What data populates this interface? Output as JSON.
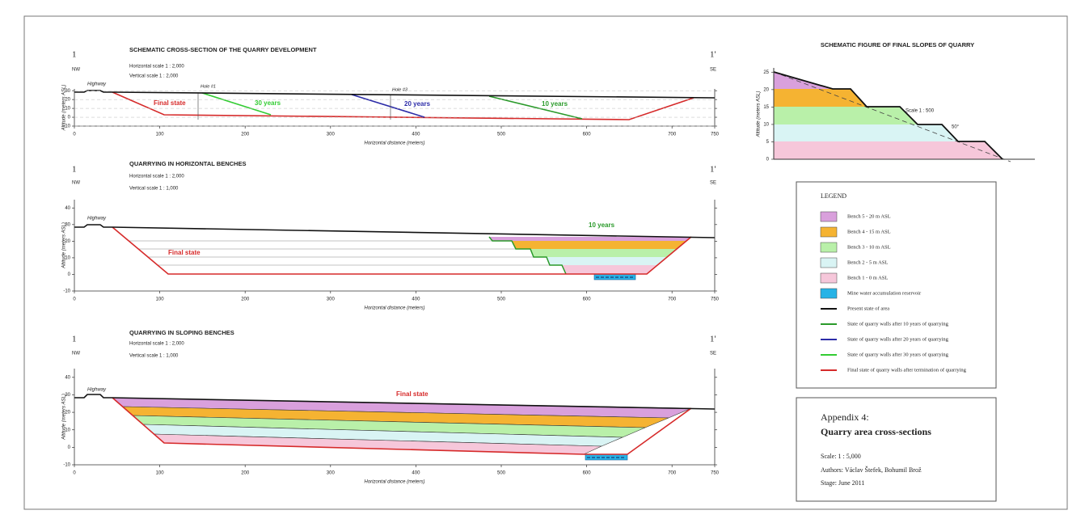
{
  "cross_sections": [
    {
      "title": "SCHEMATIC CROSS-SECTION OF THE QUARRY DEVELOPMENT",
      "id_left": "1",
      "dir_left": "NW",
      "id_right": "1'",
      "dir_right": "SE",
      "horizontal_scale": "Horizontal scale 1 : 2,000",
      "vertical_scale": "Vertical scale 1 : 2,000",
      "y_axis_label": "Altitude (meters ASL)",
      "x_axis_label": "Horizontal distance (meters)",
      "xlim": [
        0,
        750
      ],
      "ylim": [
        -10,
        32
      ],
      "xticks": [
        0,
        100,
        200,
        300,
        400,
        500,
        600,
        700,
        750
      ],
      "yticks": [
        -10,
        0,
        10,
        20,
        30
      ],
      "annotations": [
        "Highway",
        "Final state",
        "30 years",
        "Hole #1",
        "Hole #3",
        "20 years",
        "10 years"
      ]
    },
    {
      "title": "QUARRYING IN HORIZONTAL BENCHES",
      "id_left": "1",
      "dir_left": "NW",
      "id_right": "1'",
      "dir_right": "SE",
      "horizontal_scale": "Horizontal scale 1 : 2,000",
      "vertical_scale": "Vertical scale 1 : 1,000",
      "y_axis_label": "Altitude (meters ASL)",
      "x_axis_label": "Horizontal distance (meters)",
      "xlim": [
        0,
        750
      ],
      "ylim": [
        -10,
        45
      ],
      "xticks": [
        0,
        100,
        200,
        300,
        400,
        500,
        600,
        700,
        750
      ],
      "yticks": [
        -10,
        0,
        10,
        20,
        30,
        40
      ],
      "annotations": [
        "Highway",
        "Final state",
        "10 years"
      ]
    },
    {
      "title": "QUARRYING IN SLOPING BENCHES",
      "id_left": "1",
      "dir_left": "NW",
      "id_right": "1'",
      "dir_right": "SE",
      "horizontal_scale": "Horizontal scale 1 : 2,000",
      "vertical_scale": "Vertical scale 1 : 1,000",
      "y_axis_label": "Altitude (meters ASL)",
      "x_axis_label": "Horizontal distance (meters)",
      "xlim": [
        0,
        750
      ],
      "ylim": [
        -10,
        45
      ],
      "xticks": [
        0,
        100,
        200,
        300,
        400,
        500,
        600,
        700,
        750
      ],
      "yticks": [
        -10,
        0,
        10,
        20,
        30,
        40
      ],
      "annotations": [
        "Highway",
        "Final state"
      ]
    }
  ],
  "slopes_figure": {
    "title": "SCHEMATIC FIGURE OF FINAL SLOPES OF QUARRY",
    "scale": "Scale 1 : 500",
    "angle": "50°",
    "y_axis_label": "Altitude (meters ASL)",
    "ylim": [
      0,
      26
    ],
    "yticks": [
      0,
      5,
      10,
      15,
      20,
      25
    ]
  },
  "legend": {
    "title": "LEGEND",
    "items": [
      {
        "label": "Bench 5 - 20 m ASL",
        "color": "#d9a0dc",
        "kind": "fill"
      },
      {
        "label": "Bench 4 - 15 m ASL",
        "color": "#f5b332",
        "kind": "fill"
      },
      {
        "label": "Bench 3 - 10 m ASL",
        "color": "#b9f0a9",
        "kind": "fill"
      },
      {
        "label": "Bench 2 - 5 m ASL",
        "color": "#d9f4f4",
        "kind": "fill"
      },
      {
        "label": "Bench 1 - 0 m ASL",
        "color": "#f6c7da",
        "kind": "fill"
      },
      {
        "label": "Mine water accumulation reservoir",
        "color": "#27b3e6",
        "kind": "fill"
      },
      {
        "label": "Present state of area",
        "color": "#111111",
        "kind": "line"
      },
      {
        "label": "State of quarry walls after 10 years of quarrying",
        "color": "#2a9a2a",
        "kind": "line"
      },
      {
        "label": "State of quarry walls after 20 years of quarrying",
        "color": "#2c2ca8",
        "kind": "line"
      },
      {
        "label": "State of quarry walls after 30 years of quarrying",
        "color": "#33cc33",
        "kind": "line"
      },
      {
        "label": "Final state of quarry walls after termination of quarrying",
        "color": "#d62a2a",
        "kind": "line"
      }
    ]
  },
  "appendix": {
    "title": "Appendix 4:",
    "subtitle": "Quarry area cross-sections",
    "scale": "Scale:  1 : 5,000",
    "authors": "Authors:  Václav Štefek, Bohumil Brož",
    "stage": "Stage:  June 2011"
  }
}
